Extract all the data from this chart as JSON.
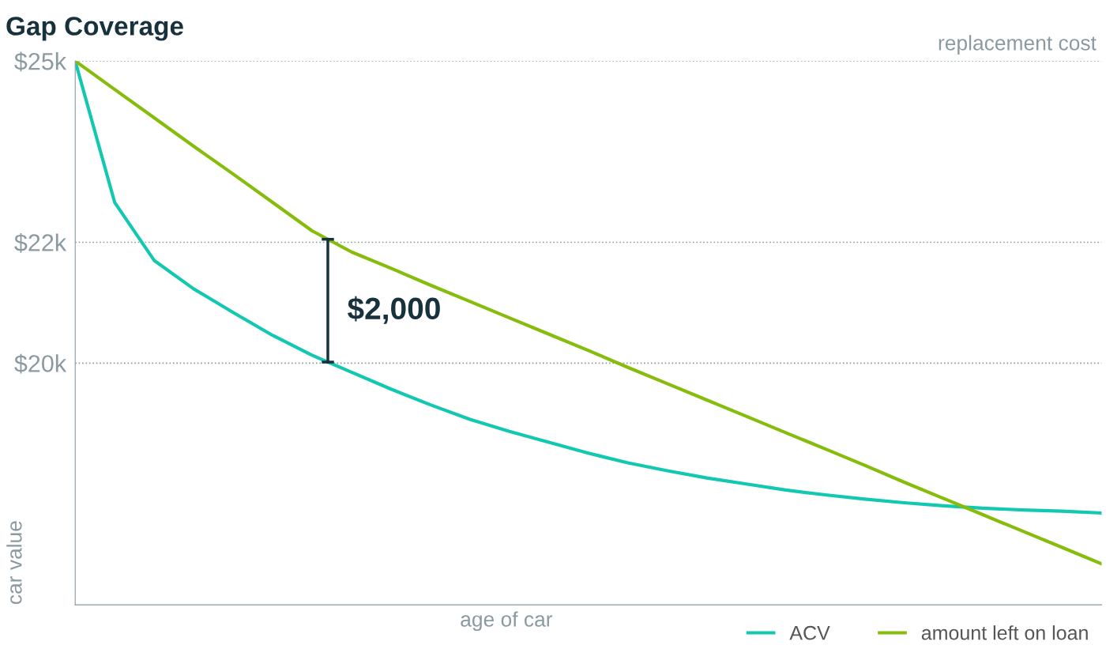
{
  "chart_data": {
    "type": "line",
    "title": "Gap Coverage",
    "xlabel": "age of car",
    "ylabel": "car value",
    "categories": [
      null,
      null,
      null,
      null,
      null,
      null,
      null,
      null,
      null,
      null,
      null,
      null,
      null,
      null,
      null,
      null,
      null,
      null,
      null,
      null,
      null,
      null,
      null,
      null,
      null,
      null,
      null
    ],
    "series": [
      {
        "name": "ACV",
        "color": "#13c8b0",
        "values": [
          25000,
          22660,
          21700,
          21230,
          20840,
          20460,
          20130,
          19850,
          19570,
          19310,
          19070,
          18870,
          18690,
          18510,
          18350,
          18220,
          18100,
          18000,
          17900,
          17820,
          17750,
          17690,
          17640,
          17600,
          17570,
          17550,
          17520
        ]
      },
      {
        "name": "amount left on loan",
        "color": "#86bc0c",
        "values": [
          25000,
          24530,
          24060,
          23590,
          23130,
          22660,
          22190,
          21840,
          21570,
          21290,
          21020,
          20750,
          20480,
          20210,
          19930,
          19660,
          19390,
          19120,
          18850,
          18580,
          18310,
          18030,
          17760,
          17490,
          17220,
          16950,
          16680
        ]
      }
    ],
    "ylim": [
      16000,
      25000
    ],
    "yticks": [
      {
        "value": 20000,
        "label": "$20k"
      },
      {
        "value": 22000,
        "label": "$22k"
      },
      {
        "value": 25000,
        "label": "$25k"
      }
    ],
    "grid": "y",
    "legend": "bottom right",
    "marker": "none",
    "line_style": "solid",
    "annotations": [
      "$2,000",
      "replacement cost"
    ]
  }
}
